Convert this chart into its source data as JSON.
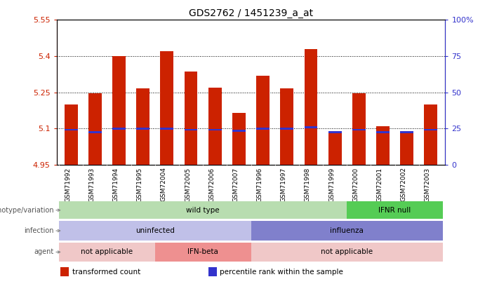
{
  "title": "GDS2762 / 1451239_a_at",
  "samples": [
    "GSM71992",
    "GSM71993",
    "GSM71994",
    "GSM71995",
    "GSM72004",
    "GSM72005",
    "GSM72006",
    "GSM72007",
    "GSM71996",
    "GSM71997",
    "GSM71998",
    "GSM71999",
    "GSM72000",
    "GSM72001",
    "GSM72002",
    "GSM72003"
  ],
  "bar_values": [
    5.2,
    5.245,
    5.4,
    5.265,
    5.42,
    5.335,
    5.27,
    5.165,
    5.32,
    5.265,
    5.43,
    5.09,
    5.245,
    5.11,
    5.09,
    5.2
  ],
  "percentile_values": [
    5.095,
    5.085,
    5.1,
    5.1,
    5.1,
    5.095,
    5.095,
    5.09,
    5.1,
    5.1,
    5.105,
    5.085,
    5.095,
    5.085,
    5.085,
    5.095
  ],
  "bar_bottom": 4.95,
  "ylim_left": [
    4.95,
    5.55
  ],
  "ylim_right": [
    0,
    100
  ],
  "yticks_left": [
    4.95,
    5.1,
    5.25,
    5.4,
    5.55
  ],
  "ytick_labels_left": [
    "4.95",
    "5.1",
    "5.25",
    "5.4",
    "5.55"
  ],
  "yticks_right": [
    0,
    25,
    50,
    75,
    100
  ],
  "ytick_labels_right": [
    "0",
    "25",
    "50",
    "75",
    "100%"
  ],
  "bar_color": "#cc2200",
  "percentile_color": "#3333cc",
  "background_color": "#ffffff",
  "genotype_row": {
    "label": "genotype/variation",
    "groups": [
      {
        "text": "wild type",
        "start": 0,
        "end": 11,
        "color": "#b8ddb0"
      },
      {
        "text": "IFNR null",
        "start": 12,
        "end": 15,
        "color": "#55cc55"
      }
    ]
  },
  "infection_row": {
    "label": "infection",
    "groups": [
      {
        "text": "uninfected",
        "start": 0,
        "end": 7,
        "color": "#c0c0e8"
      },
      {
        "text": "influenza",
        "start": 8,
        "end": 15,
        "color": "#8080cc"
      }
    ]
  },
  "agent_row": {
    "label": "agent",
    "groups": [
      {
        "text": "not applicable",
        "start": 0,
        "end": 3,
        "color": "#f0c8c8"
      },
      {
        "text": "IFN-beta",
        "start": 4,
        "end": 7,
        "color": "#ee9090"
      },
      {
        "text": "not applicable",
        "start": 8,
        "end": 15,
        "color": "#f0c8c8"
      }
    ]
  },
  "legend_items": [
    {
      "color": "#cc2200",
      "label": "transformed count"
    },
    {
      "color": "#3333cc",
      "label": "percentile rank within the sample"
    }
  ]
}
